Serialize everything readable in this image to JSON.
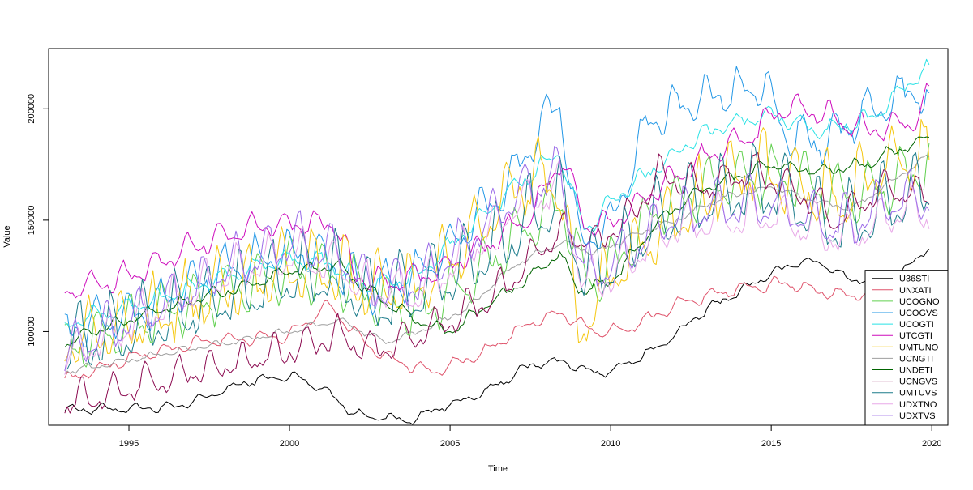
{
  "chart_data": {
    "type": "line",
    "title": "",
    "xlabel": "Time",
    "ylabel": "Value",
    "xlim": [
      1992.5,
      2020.5
    ],
    "ylim": [
      58000,
      227000
    ],
    "x_ticks": [
      1995,
      2000,
      2005,
      2010,
      2015,
      2020
    ],
    "x_tick_labels": [
      "1995",
      "2000",
      "2005",
      "2010",
      "2015",
      "2020"
    ],
    "y_ticks": [
      100000,
      150000,
      200000
    ],
    "y_tick_labels": [
      "100000",
      "150000",
      "200000"
    ],
    "grid": false,
    "legend_position": "bottom-right",
    "x_start": 1993.0,
    "x_step": 0.0833333,
    "series": [
      {
        "name": "U36STI",
        "color": "#000000",
        "anchors": [
          [
            1993.0,
            65000
          ],
          [
            1996.5,
            66000
          ],
          [
            1998.8,
            78000
          ],
          [
            2000.2,
            80000
          ],
          [
            2001.2,
            73000
          ],
          [
            2002.0,
            63000
          ],
          [
            2003.8,
            60000
          ],
          [
            2004.5,
            65000
          ],
          [
            2006.0,
            72000
          ],
          [
            2007.5,
            85000
          ],
          [
            2008.5,
            87000
          ],
          [
            2009.2,
            82000
          ],
          [
            2010.0,
            82000
          ],
          [
            2011.5,
            93000
          ],
          [
            2013.0,
            110000
          ],
          [
            2014.5,
            122000
          ],
          [
            2015.9,
            132000
          ],
          [
            2016.7,
            130000
          ],
          [
            2017.5,
            123000
          ],
          [
            2019.0,
            125000
          ],
          [
            2019.9,
            138000
          ],
          [
            2020.0,
            136000
          ]
        ],
        "amp": 1500,
        "noise": 800,
        "phase": 0.0
      },
      {
        "name": "UNXATI",
        "color": "#DF536B",
        "anchors": [
          [
            1993.0,
            78000
          ],
          [
            1995.0,
            88000
          ],
          [
            1997.5,
            96000
          ],
          [
            2000.0,
            98000
          ],
          [
            2001.2,
            112000
          ],
          [
            2002.5,
            93000
          ],
          [
            2003.5,
            86000
          ],
          [
            2004.5,
            82000
          ],
          [
            2006.0,
            90000
          ],
          [
            2007.5,
            104000
          ],
          [
            2008.5,
            108000
          ],
          [
            2009.5,
            100000
          ],
          [
            2010.5,
            101000
          ],
          [
            2012.0,
            112000
          ],
          [
            2013.5,
            118000
          ],
          [
            2015.5,
            122000
          ],
          [
            2016.5,
            118000
          ],
          [
            2017.5,
            116000
          ],
          [
            2019.0,
            122000
          ],
          [
            2020.0,
            125000
          ]
        ],
        "amp": 2200,
        "noise": 800,
        "phase": 0.5
      },
      {
        "name": "UCOGNO",
        "color": "#61D04F",
        "anchors": [
          [
            1993.0,
            92000
          ],
          [
            1996.0,
            108000
          ],
          [
            1998.0,
            118000
          ],
          [
            2000.0,
            127000
          ],
          [
            2001.5,
            124000
          ],
          [
            2003.0,
            113000
          ],
          [
            2004.0,
            108000
          ],
          [
            2005.5,
            121000
          ],
          [
            2007.0,
            142000
          ],
          [
            2008.5,
            158000
          ],
          [
            2009.2,
            122000
          ],
          [
            2010.0,
            128000
          ],
          [
            2011.5,
            155000
          ],
          [
            2013.0,
            165000
          ],
          [
            2015.0,
            170000
          ],
          [
            2016.5,
            165000
          ],
          [
            2017.5,
            160000
          ],
          [
            2019.0,
            168000
          ],
          [
            2020.0,
            178000
          ]
        ],
        "amp": 10000,
        "noise": 2500,
        "phase": 1.0
      },
      {
        "name": "UCOGVS",
        "color": "#2297E6",
        "anchors": [
          [
            1993.0,
            100000
          ],
          [
            1996.0,
            112000
          ],
          [
            1998.0,
            128000
          ],
          [
            2000.0,
            136000
          ],
          [
            2001.0,
            133000
          ],
          [
            2002.5,
            118000
          ],
          [
            2004.0,
            125000
          ],
          [
            2005.5,
            145000
          ],
          [
            2007.0,
            170000
          ],
          [
            2008.4,
            205000
          ],
          [
            2009.0,
            140000
          ],
          [
            2010.0,
            148000
          ],
          [
            2011.2,
            195000
          ],
          [
            2013.0,
            205000
          ],
          [
            2014.8,
            210000
          ],
          [
            2015.5,
            188000
          ],
          [
            2016.5,
            185000
          ],
          [
            2018.5,
            202000
          ],
          [
            2019.6,
            210000
          ],
          [
            2020.0,
            195000
          ]
        ],
        "amp": 8000,
        "noise": 2500,
        "phase": 1.5
      },
      {
        "name": "UCOGTI",
        "color": "#28E2E5",
        "anchors": [
          [
            1993.0,
            103000
          ],
          [
            1996.0,
            115000
          ],
          [
            1998.0,
            125000
          ],
          [
            2000.0,
            133000
          ],
          [
            2001.0,
            132000
          ],
          [
            2002.5,
            120000
          ],
          [
            2004.0,
            125000
          ],
          [
            2005.5,
            145000
          ],
          [
            2007.0,
            165000
          ],
          [
            2008.4,
            180000
          ],
          [
            2009.2,
            145000
          ],
          [
            2010.0,
            158000
          ],
          [
            2011.5,
            175000
          ],
          [
            2013.0,
            190000
          ],
          [
            2015.0,
            198000
          ],
          [
            2016.5,
            190000
          ],
          [
            2018.0,
            195000
          ],
          [
            2019.8,
            218000
          ],
          [
            2020.0,
            212000
          ]
        ],
        "amp": 3000,
        "noise": 1500,
        "phase": 2.0
      },
      {
        "name": "UTCGTI",
        "color": "#CD0BBC",
        "anchors": [
          [
            1993.0,
            118000
          ],
          [
            1995.0,
            125000
          ],
          [
            1997.0,
            138000
          ],
          [
            1998.5,
            146000
          ],
          [
            2000.0,
            148000
          ],
          [
            2001.5,
            148000
          ],
          [
            2002.0,
            125000
          ],
          [
            2003.0,
            122000
          ],
          [
            2004.5,
            126000
          ],
          [
            2006.0,
            138000
          ],
          [
            2007.5,
            152000
          ],
          [
            2008.5,
            178000
          ],
          [
            2009.2,
            148000
          ],
          [
            2010.0,
            148000
          ],
          [
            2011.5,
            165000
          ],
          [
            2013.0,
            178000
          ],
          [
            2014.5,
            190000
          ],
          [
            2015.5,
            202000
          ],
          [
            2016.5,
            198000
          ],
          [
            2018.0,
            190000
          ],
          [
            2019.5,
            195000
          ],
          [
            2020.0,
            208000
          ]
        ],
        "amp": 4500,
        "noise": 1500,
        "phase": 2.5
      },
      {
        "name": "UMTUNO",
        "color": "#F5C710",
        "anchors": [
          [
            1993.0,
            95000
          ],
          [
            1996.0,
            108000
          ],
          [
            1998.0,
            120000
          ],
          [
            2000.0,
            130000
          ],
          [
            2001.5,
            128000
          ],
          [
            2002.5,
            118000
          ],
          [
            2004.0,
            120000
          ],
          [
            2005.5,
            140000
          ],
          [
            2007.0,
            165000
          ],
          [
            2008.4,
            170000
          ],
          [
            2009.0,
            100000
          ],
          [
            2009.8,
            120000
          ],
          [
            2011.0,
            140000
          ],
          [
            2013.0,
            160000
          ],
          [
            2014.6,
            175000
          ],
          [
            2016.0,
            165000
          ],
          [
            2017.5,
            160000
          ],
          [
            2019.0,
            180000
          ],
          [
            2020.0,
            175000
          ]
        ],
        "amp": 12000,
        "noise": 5000,
        "phase": 3.0
      },
      {
        "name": "UCNGTI",
        "color": "#9E9E9E",
        "anchors": [
          [
            1993.0,
            82000
          ],
          [
            1996.0,
            90000
          ],
          [
            1998.0,
            95000
          ],
          [
            2000.0,
            100000
          ],
          [
            2001.5,
            105000
          ],
          [
            2003.0,
            95000
          ],
          [
            2004.0,
            100000
          ],
          [
            2005.5,
            110000
          ],
          [
            2007.0,
            130000
          ],
          [
            2008.5,
            140000
          ],
          [
            2009.5,
            135000
          ],
          [
            2010.5,
            142000
          ],
          [
            2012.0,
            150000
          ],
          [
            2013.5,
            160000
          ],
          [
            2015.0,
            165000
          ],
          [
            2016.5,
            158000
          ],
          [
            2017.5,
            155000
          ],
          [
            2019.0,
            170000
          ],
          [
            2020.0,
            180000
          ]
        ],
        "amp": 1000,
        "noise": 700,
        "phase": 3.5
      },
      {
        "name": "UNDETI",
        "color": "#006400",
        "anchors": [
          [
            1993.0,
            95000
          ],
          [
            1996.0,
            110000
          ],
          [
            1998.0,
            118000
          ],
          [
            2000.0,
            127000
          ],
          [
            2001.5,
            130000
          ],
          [
            2002.5,
            118000
          ],
          [
            2004.0,
            105000
          ],
          [
            2005.0,
            100000
          ],
          [
            2006.0,
            110000
          ],
          [
            2007.5,
            125000
          ],
          [
            2008.4,
            135000
          ],
          [
            2009.0,
            118000
          ],
          [
            2010.0,
            122000
          ],
          [
            2011.5,
            150000
          ],
          [
            2013.0,
            165000
          ],
          [
            2015.0,
            175000
          ],
          [
            2016.5,
            172000
          ],
          [
            2018.0,
            175000
          ],
          [
            2019.0,
            182000
          ],
          [
            2020.0,
            188000
          ]
        ],
        "amp": 2000,
        "noise": 1200,
        "phase": 4.0
      },
      {
        "name": "UCNGVS",
        "color": "#8B0A50",
        "anchors": [
          [
            1993.0,
            68000
          ],
          [
            1995.0,
            75000
          ],
          [
            1997.0,
            82000
          ],
          [
            1998.5,
            86000
          ],
          [
            2000.0,
            92000
          ],
          [
            2001.5,
            98000
          ],
          [
            2002.5,
            92000
          ],
          [
            2004.0,
            98000
          ],
          [
            2005.0,
            105000
          ],
          [
            2006.5,
            118000
          ],
          [
            2008.0,
            140000
          ],
          [
            2008.5,
            145000
          ],
          [
            2009.5,
            140000
          ],
          [
            2010.5,
            150000
          ],
          [
            2011.5,
            170000
          ],
          [
            2013.0,
            165000
          ],
          [
            2014.5,
            172000
          ],
          [
            2016.0,
            162000
          ],
          [
            2017.0,
            150000
          ],
          [
            2018.5,
            165000
          ],
          [
            2020.0,
            160000
          ]
        ],
        "amp": 6000,
        "noise": 2000,
        "phase": 4.5
      },
      {
        "name": "UMTUVS",
        "color": "#1B7B8A",
        "anchors": [
          [
            1993.0,
            93000
          ],
          [
            1996.0,
            105000
          ],
          [
            1998.0,
            115000
          ],
          [
            2000.0,
            125000
          ],
          [
            2001.5,
            125000
          ],
          [
            2002.5,
            113000
          ],
          [
            2004.0,
            118000
          ],
          [
            2005.5,
            130000
          ],
          [
            2007.0,
            145000
          ],
          [
            2008.4,
            160000
          ],
          [
            2009.2,
            125000
          ],
          [
            2010.0,
            130000
          ],
          [
            2011.5,
            150000
          ],
          [
            2013.0,
            160000
          ],
          [
            2015.0,
            165000
          ],
          [
            2016.5,
            150000
          ],
          [
            2017.5,
            148000
          ],
          [
            2019.0,
            160000
          ],
          [
            2020.0,
            165000
          ]
        ],
        "amp": 13000,
        "noise": 3000,
        "phase": 5.0
      },
      {
        "name": "UDXTNO",
        "color": "#E8A8E8",
        "anchors": [
          [
            1993.0,
            88000
          ],
          [
            1996.0,
            110000
          ],
          [
            1998.0,
            125000
          ],
          [
            2000.0,
            135000
          ],
          [
            2001.5,
            130000
          ],
          [
            2002.5,
            118000
          ],
          [
            2004.0,
            118000
          ],
          [
            2005.5,
            135000
          ],
          [
            2007.0,
            155000
          ],
          [
            2008.4,
            165000
          ],
          [
            2009.2,
            120000
          ],
          [
            2010.0,
            125000
          ],
          [
            2011.5,
            145000
          ],
          [
            2013.0,
            150000
          ],
          [
            2015.0,
            152000
          ],
          [
            2016.5,
            145000
          ],
          [
            2017.5,
            142000
          ],
          [
            2019.0,
            155000
          ],
          [
            2020.0,
            152000
          ]
        ],
        "amp": 8000,
        "noise": 2500,
        "phase": 5.5
      },
      {
        "name": "UDXTVS",
        "color": "#9B6BE8",
        "anchors": [
          [
            1993.0,
            90000
          ],
          [
            1996.0,
            112000
          ],
          [
            1998.0,
            128000
          ],
          [
            2000.0,
            140000
          ],
          [
            2001.5,
            135000
          ],
          [
            2002.5,
            120000
          ],
          [
            2004.0,
            122000
          ],
          [
            2005.5,
            140000
          ],
          [
            2007.0,
            160000
          ],
          [
            2008.4,
            172000
          ],
          [
            2009.2,
            125000
          ],
          [
            2010.0,
            130000
          ],
          [
            2011.5,
            148000
          ],
          [
            2013.0,
            155000
          ],
          [
            2015.0,
            158000
          ],
          [
            2016.5,
            150000
          ],
          [
            2017.5,
            148000
          ],
          [
            2019.0,
            160000
          ],
          [
            2020.0,
            158000
          ]
        ],
        "amp": 9000,
        "noise": 2500,
        "phase": 6.0
      }
    ]
  }
}
